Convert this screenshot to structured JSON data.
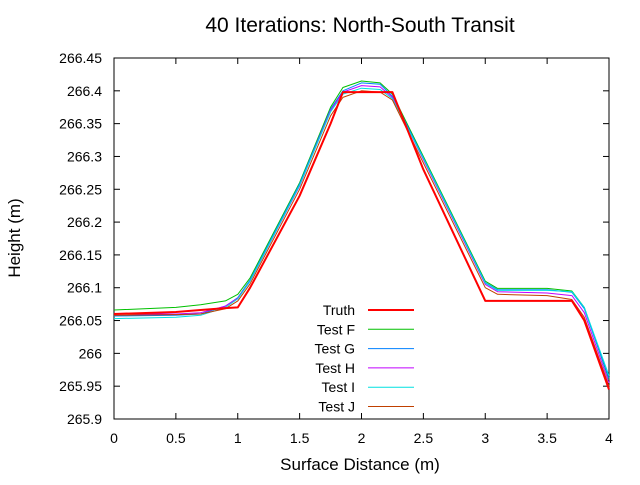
{
  "chart_data": {
    "type": "line",
    "title": "40 Iterations: North-South Transit",
    "xlabel": "Surface Distance (m)",
    "ylabel": "Height (m)",
    "xlim": [
      0,
      4
    ],
    "ylim": [
      265.9,
      266.45
    ],
    "xticks": [
      "0",
      "0.5",
      "1",
      "1.5",
      "2",
      "2.5",
      "3",
      "3.5",
      "4"
    ],
    "yticks": [
      "265.9",
      "265.95",
      "266",
      "266.05",
      "266.1",
      "266.15",
      "266.2",
      "266.25",
      "266.3",
      "266.35",
      "266.4",
      "266.45"
    ],
    "grid": false,
    "legend_position": "bottom-center",
    "x": [
      0,
      0.5,
      0.7,
      0.9,
      1,
      1.1,
      1.5,
      1.75,
      1.85,
      2,
      2.15,
      2.25,
      2.5,
      3,
      3.1,
      3.5,
      3.7,
      3.8,
      4
    ],
    "series": [
      {
        "name": "Truth",
        "color": "#ff0000",
        "width": 2,
        "values": [
          266.06,
          266.063,
          266.066,
          266.069,
          266.07,
          266.1,
          266.24,
          266.35,
          266.398,
          266.398,
          266.398,
          266.398,
          266.28,
          266.08,
          266.08,
          266.08,
          266.08,
          266.05,
          265.945
        ]
      },
      {
        "name": "Test F",
        "color": "#00c000",
        "width": 1,
        "values": [
          266.066,
          266.07,
          266.074,
          266.08,
          266.09,
          266.115,
          266.26,
          266.375,
          266.405,
          266.415,
          266.412,
          266.395,
          266.3,
          266.11,
          266.099,
          266.099,
          266.095,
          266.07,
          265.96
        ]
      },
      {
        "name": "Test G",
        "color": "#0080ff",
        "width": 1,
        "values": [
          266.057,
          266.058,
          266.06,
          266.072,
          266.085,
          266.112,
          266.258,
          266.372,
          266.4,
          266.412,
          266.41,
          266.392,
          266.298,
          266.108,
          266.097,
          266.097,
          266.093,
          266.068,
          265.962
        ]
      },
      {
        "name": "Test H",
        "color": "#c000ff",
        "width": 1,
        "values": [
          266.06,
          266.06,
          266.062,
          266.072,
          266.084,
          266.11,
          266.255,
          266.37,
          266.398,
          266.408,
          266.406,
          266.39,
          266.295,
          266.105,
          266.094,
          266.092,
          266.088,
          266.062,
          265.955
        ]
      },
      {
        "name": "Test I",
        "color": "#00e0e0",
        "width": 1,
        "values": [
          266.053,
          266.055,
          266.058,
          266.07,
          266.083,
          266.11,
          266.256,
          266.368,
          266.395,
          266.404,
          266.402,
          266.388,
          266.297,
          266.107,
          266.096,
          266.096,
          266.094,
          266.07,
          265.966
        ]
      },
      {
        "name": "Test J",
        "color": "#c04000",
        "width": 1,
        "values": [
          266.058,
          266.059,
          266.06,
          266.068,
          266.08,
          266.106,
          266.25,
          266.362,
          266.39,
          266.4,
          266.398,
          266.386,
          266.29,
          266.1,
          266.09,
          266.088,
          266.082,
          266.055,
          265.95
        ]
      }
    ]
  }
}
